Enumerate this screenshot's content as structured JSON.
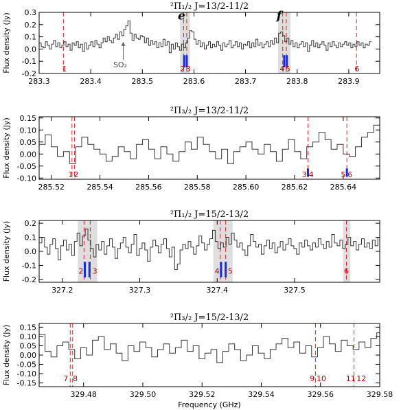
{
  "xlabel": "Frequency (GHz)",
  "chart_data": [
    {
      "type": "line",
      "title": "²Π₁/₂ J=13/2-11/2",
      "xlim": [
        283.3,
        283.96
      ],
      "ylim": [
        -0.2,
        0.3
      ],
      "xticks": [
        283.3,
        283.4,
        283.5,
        283.6,
        283.7,
        283.8,
        283.9
      ],
      "xtick_labels": [
        "283.3",
        "283.4",
        "283.5",
        "283.6",
        "283.7",
        "283.8",
        "283.9"
      ],
      "yticks": [
        -0.2,
        -0.1,
        0.0,
        0.1,
        0.2,
        0.3
      ],
      "ytick_labels": [
        "-0.2",
        "-0.1",
        "0.0",
        "0.1",
        "0.2",
        "0.3"
      ],
      "ylabel": "Flux density (Jy)",
      "shaded": [
        [
          283.573,
          283.592
        ],
        [
          283.763,
          283.787
        ]
      ],
      "dashed_lines": [
        283.347,
        283.58,
        283.586,
        283.772,
        283.779,
        283.915
      ],
      "blue_bars": [
        {
          "x": 283.581,
          "y0": -0.15,
          "y1": -0.05
        },
        {
          "x": 283.586,
          "y0": -0.15,
          "y1": -0.05
        },
        {
          "x": 283.775,
          "y0": -0.15,
          "y1": -0.05
        },
        {
          "x": 283.78,
          "y0": -0.15,
          "y1": -0.05
        }
      ],
      "line_numbers": [
        {
          "label": "1",
          "x": 283.349,
          "y": -0.16
        },
        {
          "label": "2",
          "x": 283.578,
          "y": -0.16
        },
        {
          "label": "3",
          "x": 283.589,
          "y": -0.16
        },
        {
          "label": "4",
          "x": 283.771,
          "y": -0.16
        },
        {
          "label": "5",
          "x": 283.782,
          "y": -0.16
        },
        {
          "label": "6",
          "x": 283.916,
          "y": -0.16
        }
      ],
      "annotations": [
        {
          "text": "e",
          "x": 283.576,
          "y": 0.24,
          "style": "big"
        },
        {
          "text": "f",
          "x": 283.765,
          "y": 0.24,
          "style": "big"
        },
        {
          "text": "SO₂",
          "x": 283.457,
          "y": -0.15,
          "style": "small"
        }
      ],
      "arrow": {
        "x": 283.463,
        "y_from": -0.09,
        "y_to": 0.06
      },
      "x_start": 283.3,
      "step": 0.004,
      "values": [
        0.05,
        0.02,
        0.01,
        0.06,
        0.03,
        0.0,
        0.04,
        0.07,
        0.02,
        0.05,
        0.01,
        0.03,
        0.06,
        0.02,
        0.04,
        -0.01,
        0.05,
        0.03,
        0.06,
        0.01,
        0.04,
        -0.02,
        0.05,
        0.0,
        0.03,
        0.06,
        0.02,
        0.07,
        0.04,
        0.01,
        0.05,
        0.09,
        0.06,
        0.1,
        0.07,
        0.05,
        0.09,
        0.12,
        0.08,
        0.14,
        0.11,
        0.16,
        0.19,
        0.23,
        0.13,
        0.07,
        0.12,
        0.09,
        0.08,
        0.11,
        0.1,
        0.05,
        0.09,
        0.03,
        0.07,
        0.04,
        0.06,
        0.01,
        0.05,
        0.02,
        0.08,
        0.03,
        0.06,
        -0.03,
        0.04,
        0.0,
        0.05,
        0.02,
        -0.01,
        0.04,
        0.01,
        0.05,
        0.09,
        0.15,
        0.14,
        0.08,
        0.04,
        0.07,
        0.02,
        0.05,
        0.0,
        0.03,
        0.06,
        0.01,
        0.04,
        0.02,
        0.06,
        0.03,
        -0.01,
        0.05,
        0.02,
        0.04,
        0.07,
        0.01,
        0.03,
        0.06,
        0.02,
        0.05,
        0.0,
        0.04,
        0.03,
        0.06,
        0.01,
        0.05,
        0.02,
        0.08,
        0.03,
        0.05,
        0.01,
        0.04,
        0.06,
        0.02,
        0.07,
        0.04,
        0.09,
        0.05,
        0.13,
        0.14,
        0.11,
        0.06,
        0.09,
        0.04,
        0.07,
        0.02,
        0.05,
        0.01,
        0.04,
        0.06,
        0.02,
        0.05,
        -0.02,
        0.03,
        0.07,
        0.02,
        0.05,
        0.01,
        0.04,
        0.06,
        0.03,
        -0.01,
        0.05,
        0.02,
        0.06,
        0.03,
        0.01,
        0.05,
        0.02,
        0.04,
        0.06,
        0.03,
        0.05,
        0.01,
        0.04,
        0.02,
        0.06,
        0.03,
        0.05,
        0.01,
        0.04,
        0.03,
        0.06
      ]
    },
    {
      "type": "line",
      "title": "²Π₃/₂ J=13/2-11/2",
      "xlim": [
        285.515,
        285.655
      ],
      "ylim": [
        -0.105,
        0.155
      ],
      "xticks": [
        285.52,
        285.54,
        285.56,
        285.58,
        285.6,
        285.62,
        285.64
      ],
      "xtick_labels": [
        "285.52",
        "285.54",
        "285.56",
        "285.58",
        "285.60",
        "285.62",
        "285.64"
      ],
      "yticks": [
        -0.1,
        -0.05,
        0.0,
        0.05,
        0.1,
        0.15
      ],
      "ytick_labels": [
        "-0.10",
        "-0.05",
        "0.00",
        "0.05",
        "0.10",
        "0.15"
      ],
      "ylabel": "Flux density (Jy)",
      "shaded": [],
      "dashed_lines": [
        285.5285,
        285.5295,
        285.6255,
        285.6415
      ],
      "blue_bars": [
        {
          "x": 285.6255,
          "y0": -0.095,
          "y1": -0.06
        },
        {
          "x": 285.6415,
          "y0": -0.095,
          "y1": -0.06
        }
      ],
      "line_numbers": [
        {
          "label": "1",
          "x": 285.528,
          "y": -0.085
        },
        {
          "label": "2",
          "x": 285.5302,
          "y": -0.085
        },
        {
          "label": "3",
          "x": 285.624,
          "y": -0.085
        },
        {
          "label": "4",
          "x": 285.6268,
          "y": -0.085
        },
        {
          "label": "5",
          "x": 285.64,
          "y": -0.085
        },
        {
          "label": "6",
          "x": 285.6428,
          "y": -0.085
        }
      ],
      "annotations": [],
      "arrow": null,
      "x_start": 285.515,
      "step": 0.0025,
      "values": [
        0.04,
        0.08,
        0.03,
        -0.01,
        0.01,
        -0.04,
        0.03,
        0.07,
        0.04,
        0.02,
        0.0,
        -0.03,
        -0.01,
        0.03,
        0.01,
        -0.02,
        0.04,
        0.06,
        0.02,
        -0.02,
        0.03,
        0.0,
        -0.03,
        0.01,
        0.05,
        0.02,
        0.07,
        0.04,
        0.01,
        -0.02,
        0.02,
        -0.04,
        0.01,
        0.03,
        0.05,
        0.02,
        0.0,
        0.04,
        0.01,
        -0.03,
        0.02,
        0.06,
        0.01,
        -0.02,
        0.03,
        0.05,
        0.09,
        0.06,
        0.02,
        0.04,
        0.0,
        -0.01,
        0.03,
        0.07,
        0.09,
        0.12,
        0.08
      ]
    },
    {
      "type": "line",
      "title": "²Π₁/₂ J=15/2-13/2",
      "xlim": [
        327.17,
        327.61
      ],
      "ylim": [
        -0.22,
        0.22
      ],
      "xticks": [
        327.2,
        327.3,
        327.4,
        327.5
      ],
      "xtick_labels": [
        "327.2",
        "327.3",
        "327.4",
        "327.5"
      ],
      "yticks": [
        -0.2,
        -0.1,
        0.0,
        0.1,
        0.2
      ],
      "ytick_labels": [
        "-0.2",
        "-0.1",
        "0.0",
        "0.1",
        "0.2"
      ],
      "ylabel": "Flux density (Jy)",
      "shaded": [
        [
          327.22,
          327.245
        ],
        [
          327.395,
          327.42
        ],
        [
          327.563,
          327.572
        ]
      ],
      "dashed_lines": [
        327.228,
        327.236,
        327.404,
        327.411,
        327.567
      ],
      "blue_bars": [
        {
          "x": 327.229,
          "y0": -0.185,
          "y1": -0.075
        },
        {
          "x": 327.235,
          "y0": -0.185,
          "y1": -0.075
        },
        {
          "x": 327.405,
          "y0": -0.185,
          "y1": -0.075
        },
        {
          "x": 327.411,
          "y0": -0.185,
          "y1": -0.075
        }
      ],
      "line_numbers": [
        {
          "label": "2",
          "x": 327.224,
          "y": -0.14
        },
        {
          "label": "3",
          "x": 327.242,
          "y": -0.14
        },
        {
          "label": "4",
          "x": 327.4,
          "y": -0.14
        },
        {
          "label": "5",
          "x": 327.417,
          "y": -0.14
        },
        {
          "label": "6",
          "x": 327.567,
          "y": -0.14
        }
      ],
      "annotations": [],
      "arrow": null,
      "x_start": 327.17,
      "step": 0.0035,
      "values": [
        0.06,
        0.1,
        0.03,
        -0.02,
        0.05,
        0.09,
        0.02,
        -0.06,
        0.04,
        0.08,
        0.01,
        0.05,
        -0.03,
        0.07,
        0.13,
        0.04,
        0.11,
        0.16,
        0.08,
        0.02,
        -0.04,
        0.05,
        0.01,
        0.07,
        -0.02,
        0.04,
        0.09,
        0.03,
        -0.05,
        0.02,
        0.06,
        0.1,
        0.03,
        -0.01,
        0.05,
        0.12,
        -0.03,
        0.02,
        0.06,
        0.01,
        -0.07,
        0.03,
        0.08,
        0.04,
        -0.01,
        0.05,
        0.09,
        0.02,
        -0.04,
        0.03,
        -0.13,
        -0.09,
        0.01,
        0.05,
        0.02,
        0.07,
        0.03,
        -0.02,
        0.04,
        0.11,
        0.06,
        0.01,
        0.05,
        0.09,
        0.15,
        0.07,
        0.02,
        0.06,
        0.03,
        0.1,
        0.05,
        0.13,
        0.08,
        0.03,
        0.06,
        0.01,
        -0.03,
        0.04,
        0.12,
        0.07,
        0.03,
        0.05,
        -0.02,
        0.04,
        0.08,
        0.02,
        0.06,
        -0.01,
        0.03,
        0.07,
        0.01,
        0.05,
        0.09,
        0.04,
        0.02,
        -0.02,
        0.06,
        0.03,
        0.08,
        0.04,
        0.01,
        0.06,
        0.03,
        0.09,
        0.05,
        0.02,
        0.07,
        0.03,
        0.12,
        0.06,
        0.04,
        0.08,
        0.02,
        0.05,
        0.1,
        0.04,
        0.07,
        0.01,
        0.05,
        0.09,
        0.03,
        0.06,
        0.02,
        0.08,
        0.04,
        0.1
      ]
    },
    {
      "type": "line",
      "title": "²Π₃/₂ J=15/2-13/2",
      "xlim": [
        329.465,
        329.58
      ],
      "ylim": [
        -0.17,
        0.17
      ],
      "xticks": [
        329.48,
        329.5,
        329.52,
        329.54,
        329.56,
        329.58
      ],
      "xtick_labels": [
        "329.48",
        "329.50",
        "329.52",
        "329.54",
        "329.56",
        "329.58"
      ],
      "yticks": [
        -0.15,
        -0.1,
        -0.05,
        0.0,
        0.05,
        0.1,
        0.15
      ],
      "ytick_labels": [
        "-0.15",
        "-0.10",
        "-0.05",
        "0.00",
        "0.05",
        "0.10",
        "0.15"
      ],
      "ylabel": "Flux density (Jy)",
      "shaded": [],
      "dashed_lines": [
        329.4755,
        329.4763,
        329.5583,
        329.5713
      ],
      "blue_bars": [],
      "line_numbers": [
        {
          "label": "7",
          "x": 329.474,
          "y": -0.125
        },
        {
          "label": "8",
          "x": 329.4772,
          "y": -0.125
        },
        {
          "label": "9",
          "x": 329.5572,
          "y": -0.125
        },
        {
          "label": "10",
          "x": 329.5603,
          "y": -0.125
        },
        {
          "label": "11",
          "x": 329.5702,
          "y": -0.125
        },
        {
          "label": "12",
          "x": 329.5738,
          "y": -0.125
        }
      ],
      "annotations": [],
      "arrow": null,
      "x_start": 329.465,
      "step": 0.002,
      "values": [
        0.11,
        0.02,
        -0.01,
        0.05,
        0.07,
        0.03,
        -0.02,
        0.04,
        0.0,
        0.08,
        0.1,
        0.03,
        0.06,
        0.01,
        -0.03,
        0.05,
        0.02,
        0.07,
        0.04,
        -0.01,
        0.03,
        0.06,
        0.01,
        0.04,
        0.08,
        0.02,
        0.05,
        -0.02,
        0.01,
        0.03,
        -0.04,
        0.02,
        0.06,
        0.03,
        -0.03,
        0.0,
        0.05,
        0.01,
        -0.02,
        0.03,
        0.06,
        0.09,
        0.04,
        0.07,
        0.01,
        0.05,
        -0.01,
        0.04,
        0.1,
        0.06,
        0.02,
        0.08,
        0.05,
        0.03,
        0.07,
        0.04,
        0.09,
        0.12
      ]
    }
  ]
}
